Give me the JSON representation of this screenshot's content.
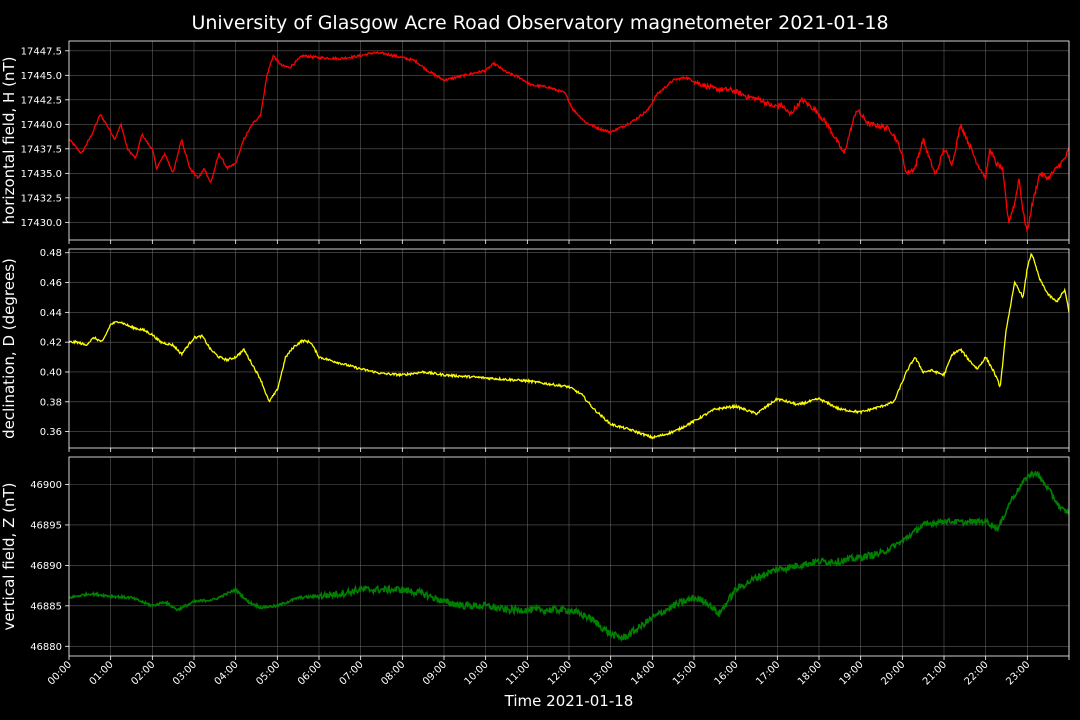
{
  "chart_data": {
    "type": "line",
    "title": "University of Glasgow Acre Road Observatory magnetometer 2021-01-18",
    "xlabel": "Time 2021-01-18",
    "xlim": [
      0,
      24
    ],
    "x_tick_labels": [
      "00:00",
      "01:00",
      "02:00",
      "03:00",
      "04:00",
      "05:00",
      "06:00",
      "07:00",
      "08:00",
      "09:00",
      "10:00",
      "11:00",
      "12:00",
      "13:00",
      "14:00",
      "15:00",
      "16:00",
      "17:00",
      "18:00",
      "19:00",
      "20:00",
      "21:00",
      "22:00",
      "23:00"
    ],
    "grid": true,
    "panels": [
      {
        "name": "horizontal",
        "ylabel": "horizontal field, H (nT)",
        "color": "#ff0000",
        "ylim": [
          17428.2,
          17448.5
        ],
        "yticks": [
          17430.0,
          17432.5,
          17435.0,
          17437.5,
          17440.0,
          17442.5,
          17445.0,
          17447.5
        ],
        "ytick_labels": [
          "17430.0",
          "17432.5",
          "17435.0",
          "17437.5",
          "17440.0",
          "17442.5",
          "17445.0",
          "17447.5"
        ],
        "x": [
          0,
          0.3,
          0.55,
          0.75,
          0.9,
          1.1,
          1.25,
          1.4,
          1.6,
          1.75,
          1.9,
          2.0,
          2.1,
          2.3,
          2.5,
          2.7,
          2.9,
          3.1,
          3.25,
          3.4,
          3.6,
          3.8,
          4.0,
          4.2,
          4.4,
          4.6,
          4.75,
          4.9,
          5.1,
          5.3,
          5.6,
          6.0,
          6.5,
          7.0,
          7.3,
          7.6,
          8.0,
          8.3,
          8.6,
          9.0,
          9.3,
          9.7,
          10.0,
          10.2,
          10.5,
          10.8,
          11.1,
          11.5,
          11.9,
          12.1,
          12.4,
          12.7,
          13.0,
          13.3,
          13.6,
          13.9,
          14.1,
          14.5,
          14.8,
          15.1,
          15.5,
          15.9,
          16.3,
          16.6,
          16.9,
          17.1,
          17.3,
          17.6,
          17.9,
          18.2,
          18.4,
          18.6,
          18.9,
          19.2,
          19.5,
          19.7,
          19.85,
          19.95,
          20.1,
          20.3,
          20.5,
          20.65,
          20.8,
          21.0,
          21.2,
          21.4,
          21.6,
          21.8,
          22.0,
          22.1,
          22.25,
          22.4,
          22.55,
          22.7,
          22.8,
          22.9,
          23.0,
          23.1,
          23.3,
          23.5,
          23.7,
          23.9,
          24.0
        ],
        "y": [
          17438.5,
          17437.0,
          17439.0,
          17441.0,
          17440.0,
          17438.5,
          17440.0,
          17437.5,
          17436.5,
          17439.0,
          17438.0,
          17437.5,
          17435.5,
          17437.0,
          17435.0,
          17438.5,
          17435.5,
          17434.5,
          17435.5,
          17434.0,
          17437.0,
          17435.5,
          17436.0,
          17438.5,
          17440.0,
          17441.0,
          17445.0,
          17447.0,
          17446.0,
          17445.8,
          17447.0,
          17446.8,
          17446.7,
          17447.0,
          17447.3,
          17447.2,
          17446.8,
          17446.5,
          17445.5,
          17444.5,
          17444.8,
          17445.2,
          17445.5,
          17446.2,
          17445.3,
          17444.8,
          17444.0,
          17443.8,
          17443.2,
          17441.5,
          17440.2,
          17439.6,
          17439.2,
          17439.8,
          17440.5,
          17441.5,
          17443.0,
          17444.5,
          17444.8,
          17444.2,
          17443.6,
          17443.5,
          17442.8,
          17442.5,
          17441.8,
          17442.0,
          17441.0,
          17442.5,
          17441.5,
          17440.0,
          17438.5,
          17437.0,
          17441.5,
          17440.0,
          17439.8,
          17439.5,
          17438.5,
          17437.5,
          17435.0,
          17435.5,
          17438.5,
          17436.5,
          17434.8,
          17437.5,
          17436.0,
          17440.0,
          17438.0,
          17436.0,
          17434.5,
          17437.5,
          17436.0,
          17435.5,
          17430.0,
          17432.0,
          17434.5,
          17431.0,
          17429.0,
          17431.5,
          17435.0,
          17434.5,
          17435.5,
          17436.5,
          17437.5
        ]
      },
      {
        "name": "declination",
        "ylabel": "declination, D (degrees)",
        "color": "#ffff00",
        "ylim": [
          0.349,
          0.4825
        ],
        "yticks": [
          0.36,
          0.38,
          0.4,
          0.42,
          0.44,
          0.46,
          0.48
        ],
        "ytick_labels": [
          "0.36",
          "0.38",
          "0.40",
          "0.42",
          "0.44",
          "0.46",
          "0.48"
        ],
        "x": [
          0,
          0.2,
          0.4,
          0.6,
          0.8,
          1.0,
          1.2,
          1.5,
          1.8,
          2.0,
          2.2,
          2.5,
          2.7,
          3.0,
          3.2,
          3.4,
          3.6,
          3.8,
          4.0,
          4.2,
          4.4,
          4.6,
          4.8,
          5.0,
          5.2,
          5.4,
          5.6,
          5.8,
          6.0,
          6.5,
          7.0,
          7.5,
          8.0,
          8.5,
          9.0,
          9.5,
          10.0,
          10.5,
          11.0,
          11.5,
          12.0,
          12.3,
          12.6,
          13.0,
          13.5,
          14.0,
          14.3,
          14.6,
          15.0,
          15.5,
          16.0,
          16.5,
          17.0,
          17.5,
          18.0,
          18.5,
          19.0,
          19.5,
          19.8,
          20.1,
          20.3,
          20.5,
          20.7,
          21.0,
          21.2,
          21.4,
          21.6,
          21.8,
          22.0,
          22.2,
          22.35,
          22.5,
          22.7,
          22.9,
          23.0,
          23.1,
          23.3,
          23.5,
          23.7,
          23.9,
          24.0
        ],
        "y": [
          0.42,
          0.42,
          0.418,
          0.423,
          0.42,
          0.432,
          0.434,
          0.43,
          0.428,
          0.425,
          0.42,
          0.418,
          0.412,
          0.423,
          0.424,
          0.415,
          0.41,
          0.408,
          0.41,
          0.415,
          0.405,
          0.395,
          0.38,
          0.388,
          0.41,
          0.417,
          0.421,
          0.42,
          0.41,
          0.406,
          0.402,
          0.399,
          0.398,
          0.4,
          0.398,
          0.397,
          0.396,
          0.395,
          0.394,
          0.392,
          0.39,
          0.385,
          0.375,
          0.365,
          0.361,
          0.356,
          0.358,
          0.361,
          0.367,
          0.375,
          0.377,
          0.372,
          0.382,
          0.378,
          0.382,
          0.375,
          0.373,
          0.377,
          0.38,
          0.4,
          0.41,
          0.4,
          0.401,
          0.398,
          0.412,
          0.415,
          0.408,
          0.402,
          0.41,
          0.4,
          0.39,
          0.43,
          0.46,
          0.45,
          0.47,
          0.48,
          0.462,
          0.452,
          0.447,
          0.455,
          0.44
        ]
      },
      {
        "name": "vertical",
        "ylabel": "vertical field, Z (nT)",
        "color": "#008000",
        "ylim": [
          46878.8,
          46903.4
        ],
        "yticks": [
          46880,
          46885,
          46890,
          46895,
          46900
        ],
        "ytick_labels": [
          "46880",
          "46885",
          "46890",
          "46895",
          "46900"
        ],
        "x": [
          0,
          0.5,
          1.0,
          1.5,
          2.0,
          2.3,
          2.6,
          3.0,
          3.5,
          4.0,
          4.3,
          4.6,
          5.0,
          5.5,
          6.0,
          6.5,
          7.0,
          7.5,
          8.0,
          8.5,
          9.0,
          9.5,
          10.0,
          10.5,
          11.0,
          11.5,
          12.0,
          12.5,
          13.0,
          13.3,
          13.6,
          14.0,
          14.5,
          15.0,
          15.3,
          15.6,
          16.0,
          16.5,
          17.0,
          17.5,
          18.0,
          18.5,
          19.0,
          19.5,
          20.0,
          20.5,
          21.0,
          21.5,
          22.0,
          22.3,
          22.6,
          23.0,
          23.2,
          23.5,
          23.8,
          24.0
        ],
        "y": [
          46886.0,
          46886.5,
          46886.2,
          46886.0,
          46885.0,
          46885.5,
          46884.5,
          46885.5,
          46885.8,
          46887.0,
          46885.5,
          46884.8,
          46885.0,
          46886.0,
          46886.2,
          46886.5,
          46887.0,
          46887.0,
          46887.0,
          46886.5,
          46885.5,
          46885.0,
          46885.0,
          46884.5,
          46884.5,
          46884.5,
          46884.5,
          46883.5,
          46881.5,
          46881.0,
          46882.0,
          46883.5,
          46885.0,
          46886.0,
          46885.5,
          46884.0,
          46887.0,
          46888.5,
          46889.5,
          46890.0,
          46890.5,
          46890.5,
          46891.0,
          46891.5,
          46893.0,
          46895.0,
          46895.5,
          46895.3,
          46895.5,
          46894.5,
          46898.0,
          46901.0,
          46901.5,
          46899.5,
          46897.0,
          46896.5
        ]
      }
    ]
  }
}
